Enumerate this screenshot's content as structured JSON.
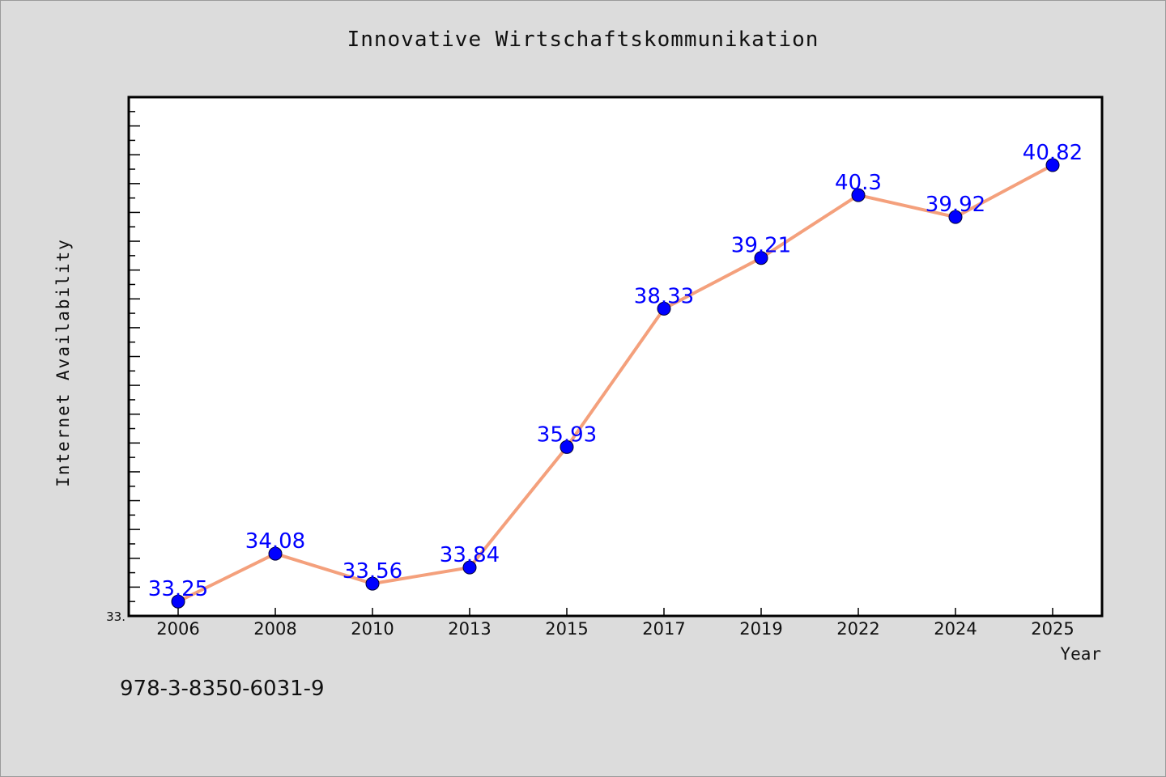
{
  "chart_data": {
    "type": "line",
    "title": "Innovative Wirtschaftskommunikation",
    "xlabel": "Year",
    "ylabel": "Internet Availability",
    "categories": [
      "2006",
      "2008",
      "2010",
      "2013",
      "2015",
      "2017",
      "2019",
      "2022",
      "2024",
      "2025"
    ],
    "series": [
      {
        "values": [
          33.25,
          34.08,
          33.56,
          33.84,
          35.93,
          38.33,
          39.21,
          40.3,
          39.92,
          40.82
        ],
        "data_labels": [
          "33.25",
          "34.08",
          "33.56",
          "33.84",
          "35.93",
          "38.33",
          "39.21",
          "40.3",
          "39.92",
          "40.82"
        ],
        "line_color": "#f4a07c",
        "marker_color": "#0000ff"
      }
    ],
    "ylim": [
      33.0,
      42.0
    ],
    "y_tick_label": "33.",
    "grid": false,
    "legend": "none"
  },
  "footer": {
    "isbn": "978-3-8350-6031-9"
  }
}
